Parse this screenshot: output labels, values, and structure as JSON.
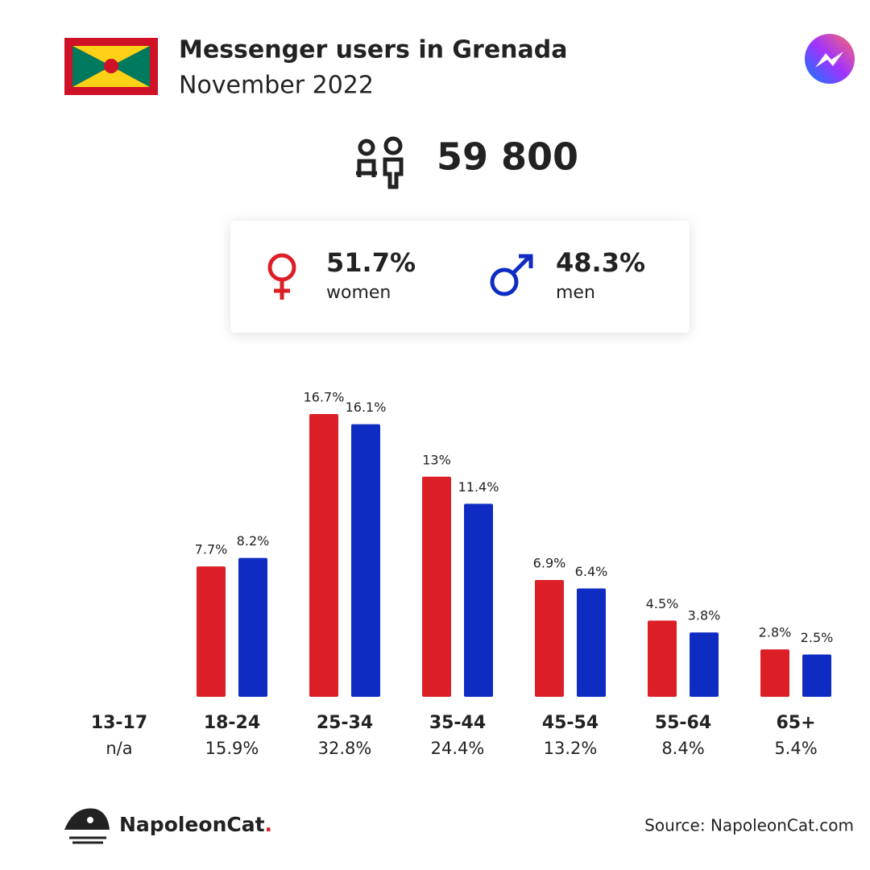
{
  "header": {
    "title": "Messenger users in Grenada",
    "subtitle": "November 2022"
  },
  "total_users": "59 800",
  "chart_data": {
    "type": "bar",
    "categories": [
      "13-17",
      "18-24",
      "25-34",
      "35-44",
      "45-54",
      "55-64",
      "65+"
    ],
    "category_labels": [
      "n/a",
      "15.9%",
      "32.8%",
      "24.4%",
      "13.2%",
      "8.4%",
      "5.4%"
    ],
    "series": [
      {
        "name": "women",
        "share_label": "51.7%",
        "color": "#dc1f26",
        "values": [
          null,
          7.7,
          16.7,
          13,
          6.9,
          4.5,
          2.8
        ],
        "value_labels": [
          null,
          "7.7%",
          "16.7%",
          "13%",
          "6.9%",
          "4.5%",
          "2.8%"
        ]
      },
      {
        "name": "men",
        "share_label": "48.3%",
        "color": "#0f2cc2",
        "values": [
          null,
          8.2,
          16.1,
          11.4,
          6.4,
          3.8,
          2.5
        ],
        "value_labels": [
          null,
          "8.2%",
          "16.1%",
          "11.4%",
          "6.4%",
          "3.8%",
          "2.5%"
        ]
      }
    ]
  },
  "footer": {
    "brand": "NapoleonCat",
    "brand_dot": ".",
    "source": "Source: NapoleonCat.com"
  }
}
